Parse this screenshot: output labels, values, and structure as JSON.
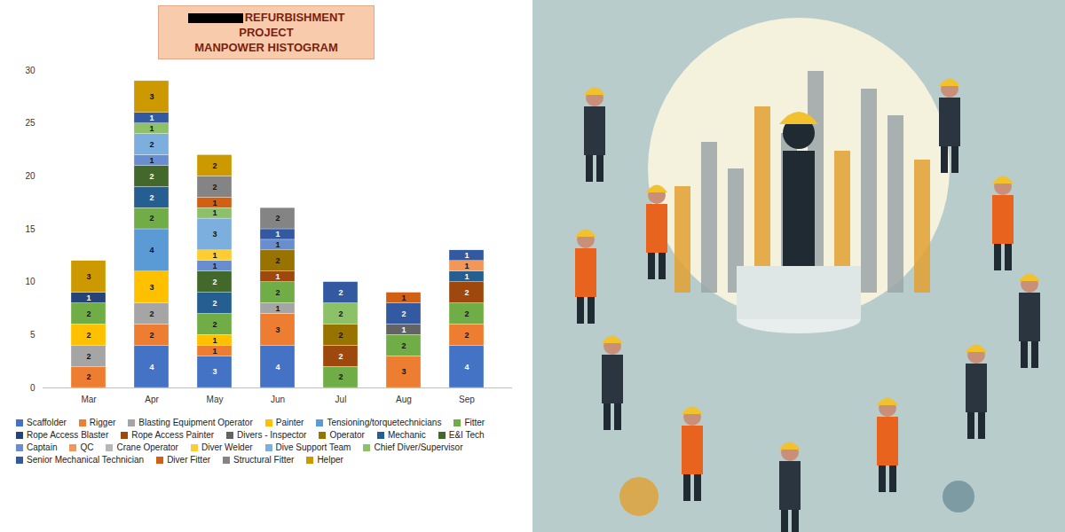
{
  "chart_data": {
    "type": "bar",
    "title": "REFURBISHMENT PROJECT",
    "subtitle": "MANPOWER HISTOGRAM",
    "categories": [
      "Mar",
      "Apr",
      "May",
      "Jun",
      "Jul",
      "Aug",
      "Sep"
    ],
    "stacked": true,
    "data_labels": true,
    "grid": false,
    "legend": "bottom",
    "ylim": [
      0,
      30
    ],
    "yticks": [
      0,
      5,
      10,
      15,
      20,
      25,
      30
    ],
    "series": [
      {
        "name": "Scaffolder",
        "color": "#4472c4",
        "values": [
          0,
          4,
          3,
          4,
          0,
          0,
          4
        ]
      },
      {
        "name": "Rigger",
        "color": "#ed7d31",
        "values": [
          2,
          2,
          1,
          3,
          0,
          3,
          2
        ]
      },
      {
        "name": "Blasting Equipment Operator",
        "color": "#a5a5a5",
        "values": [
          2,
          2,
          0,
          1,
          0,
          0,
          0
        ]
      },
      {
        "name": "Painter",
        "color": "#ffc000",
        "values": [
          2,
          3,
          1,
          0,
          0,
          0,
          0
        ]
      },
      {
        "name": "Tensioning/torquetechnicians",
        "color": "#5b9bd5",
        "values": [
          0,
          4,
          0,
          0,
          0,
          0,
          0
        ]
      },
      {
        "name": "Fitter",
        "color": "#70ad47",
        "values": [
          2,
          2,
          2,
          2,
          2,
          2,
          2
        ]
      },
      {
        "name": "Rope Access Blaster",
        "color": "#264478",
        "values": [
          1,
          0,
          0,
          0,
          0,
          0,
          0
        ]
      },
      {
        "name": "Rope Access Painter",
        "color": "#9e480e",
        "values": [
          0,
          0,
          0,
          1,
          2,
          0,
          2
        ]
      },
      {
        "name": "Divers - Inspector",
        "color": "#636363",
        "values": [
          0,
          0,
          0,
          0,
          0,
          1,
          0
        ]
      },
      {
        "name": "Operator",
        "color": "#997300",
        "values": [
          0,
          0,
          0,
          2,
          2,
          0,
          0
        ]
      },
      {
        "name": "Mechanic",
        "color": "#255e91",
        "values": [
          0,
          2,
          2,
          0,
          0,
          0,
          1
        ]
      },
      {
        "name": "E&I Tech",
        "color": "#43682b",
        "values": [
          0,
          2,
          2,
          0,
          0,
          0,
          0
        ]
      },
      {
        "name": "Captain",
        "color": "#698ed0",
        "values": [
          0,
          1,
          1,
          1,
          0,
          0,
          0
        ]
      },
      {
        "name": "QC",
        "color": "#f1975a",
        "values": [
          0,
          0,
          0,
          0,
          0,
          0,
          1
        ]
      },
      {
        "name": "Crane Operator",
        "color": "#b7b7b7",
        "values": [
          0,
          0,
          0,
          0,
          0,
          0,
          0
        ]
      },
      {
        "name": "Diver Welder",
        "color": "#ffcd33",
        "values": [
          0,
          0,
          1,
          0,
          0,
          0,
          0
        ]
      },
      {
        "name": "Dive Support Team",
        "color": "#7cafdd",
        "values": [
          0,
          2,
          3,
          0,
          0,
          0,
          0
        ]
      },
      {
        "name": "Chief Diver/Supervisor",
        "color": "#8cc168",
        "values": [
          0,
          1,
          1,
          0,
          2,
          0,
          0
        ]
      },
      {
        "name": "Senior Mechanical Technician",
        "color": "#335aa1",
        "values": [
          0,
          1,
          0,
          1,
          2,
          2,
          1
        ]
      },
      {
        "name": "Diver Fitter",
        "color": "#d26012",
        "values": [
          0,
          0,
          1,
          0,
          0,
          1,
          0
        ]
      },
      {
        "name": "Structural Fitter",
        "color": "#848484",
        "values": [
          0,
          0,
          2,
          2,
          0,
          0,
          0
        ]
      },
      {
        "name": "Helper",
        "color": "#cc9a00",
        "values": [
          3,
          3,
          2,
          0,
          0,
          0,
          0
        ]
      }
    ]
  }
}
